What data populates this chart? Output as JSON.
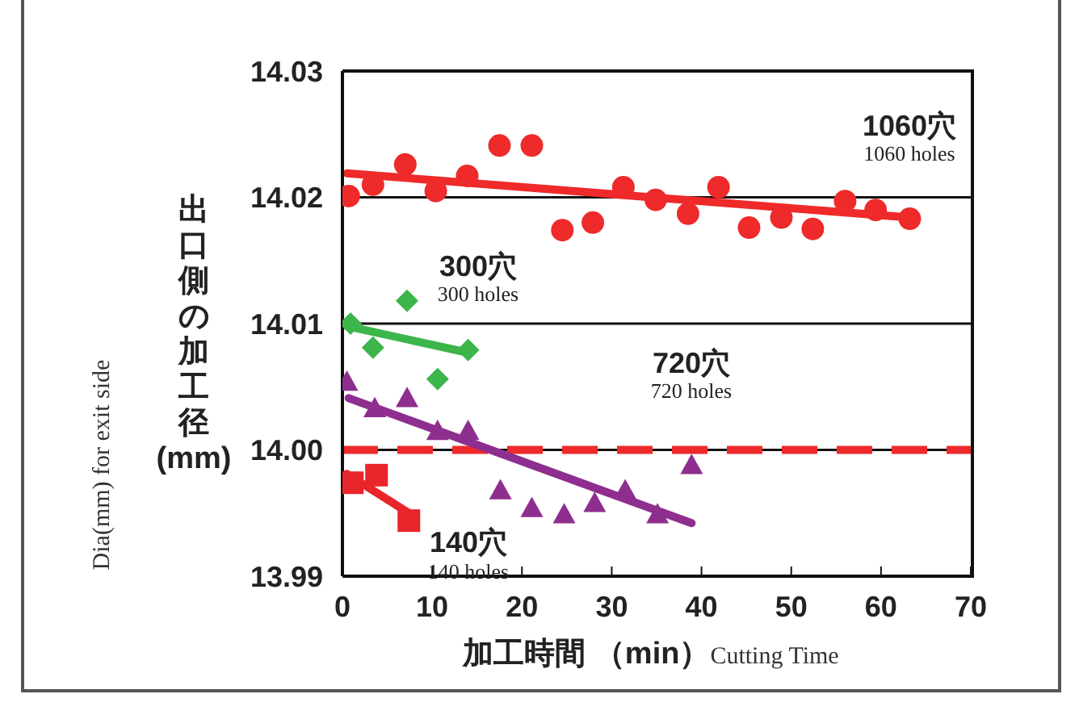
{
  "chart_data": {
    "type": "scatter",
    "xlabel": "加工時間 （min）",
    "ylabel": "出口側の加工径(mm)",
    "xlim": [
      0,
      70
    ],
    "xticks": [
      0,
      10,
      20,
      30,
      40,
      50,
      60,
      70
    ],
    "ylim": [
      13.99,
      14.03
    ],
    "yticks": [
      {
        "value": 13.99,
        "label": "13.99"
      },
      {
        "value": 14,
        "label": "14.00"
      },
      {
        "value": 14.01,
        "label": "14.01"
      },
      {
        "value": 14.02,
        "label": "14.02"
      },
      {
        "value": 14.03,
        "label": "14.03"
      }
    ],
    "grid": "y",
    "legend": false,
    "series": [
      {
        "type": "scatter",
        "marker": "circle",
        "color": "#ee2a2a",
        "x": [
          0.7,
          3.4,
          7.0,
          10.4,
          13.9,
          17.5,
          21.1,
          24.5,
          27.9,
          31.3,
          34.9,
          38.5,
          41.9,
          45.3,
          48.9,
          52.4,
          56.0,
          59.4,
          63.2
        ],
        "values": [
          14.0201,
          14.021,
          14.0226,
          14.0205,
          14.0217,
          14.0241,
          14.0241,
          14.0174,
          14.018,
          14.0208,
          14.0198,
          14.0187,
          14.0208,
          14.0176,
          14.0184,
          14.0175,
          14.0197,
          14.019,
          14.0183
        ]
      },
      {
        "type": "line",
        "marker": "none",
        "color": "#ee2a2a",
        "x": [
          0.5,
          63.2
        ],
        "values": [
          14.0219,
          14.0184
        ]
      },
      {
        "type": "scatter",
        "marker": "diamond",
        "color": "#3cb54a",
        "x": [
          0.9,
          3.4,
          7.2,
          10.6,
          14.0
        ],
        "values": [
          14.01,
          14.0081,
          14.0118,
          14.0056,
          14.0079
        ]
      },
      {
        "type": "line",
        "marker": "none",
        "color": "#3cb54a",
        "x": [
          0.5,
          14.0
        ],
        "values": [
          14.0098,
          14.0077
        ]
      },
      {
        "type": "scatter",
        "marker": "triangle",
        "color": "#8e2e8e",
        "x": [
          0.5,
          3.6,
          7.2,
          10.6,
          14.0,
          17.6,
          21.1,
          24.7,
          28.1,
          31.5,
          35.1,
          38.9
        ],
        "values": [
          14.0054,
          14.0033,
          14.0041,
          14.0015,
          14.0015,
          13.9968,
          13.9954,
          13.9949,
          13.9958,
          13.9968,
          13.9949,
          13.9988
        ]
      },
      {
        "type": "line",
        "marker": "none",
        "color": "#8e2e8e",
        "x": [
          0.7,
          38.9
        ],
        "values": [
          14.0041,
          13.9942
        ]
      },
      {
        "type": "scatter",
        "marker": "square",
        "color": "#e8252a",
        "x": [
          1.1,
          3.8,
          7.4
        ],
        "values": [
          13.9974,
          13.998,
          13.9944
        ]
      },
      {
        "type": "line",
        "marker": "none",
        "color": "#e8252a",
        "x": [
          0.5,
          7.4
        ],
        "values": [
          13.9981,
          13.995
        ]
      }
    ],
    "ref_lines": [
      {
        "axis": "y",
        "value": 14.0,
        "color": "#ee2a2a",
        "line_style": "dashed"
      }
    ],
    "annotations": [
      "Dia(mm) for exit side",
      "Cutting Time",
      "1060穴",
      "1060 holes",
      "300穴",
      "300 holes",
      "720穴",
      "720 holes",
      "140穴",
      "140 holes"
    ]
  }
}
